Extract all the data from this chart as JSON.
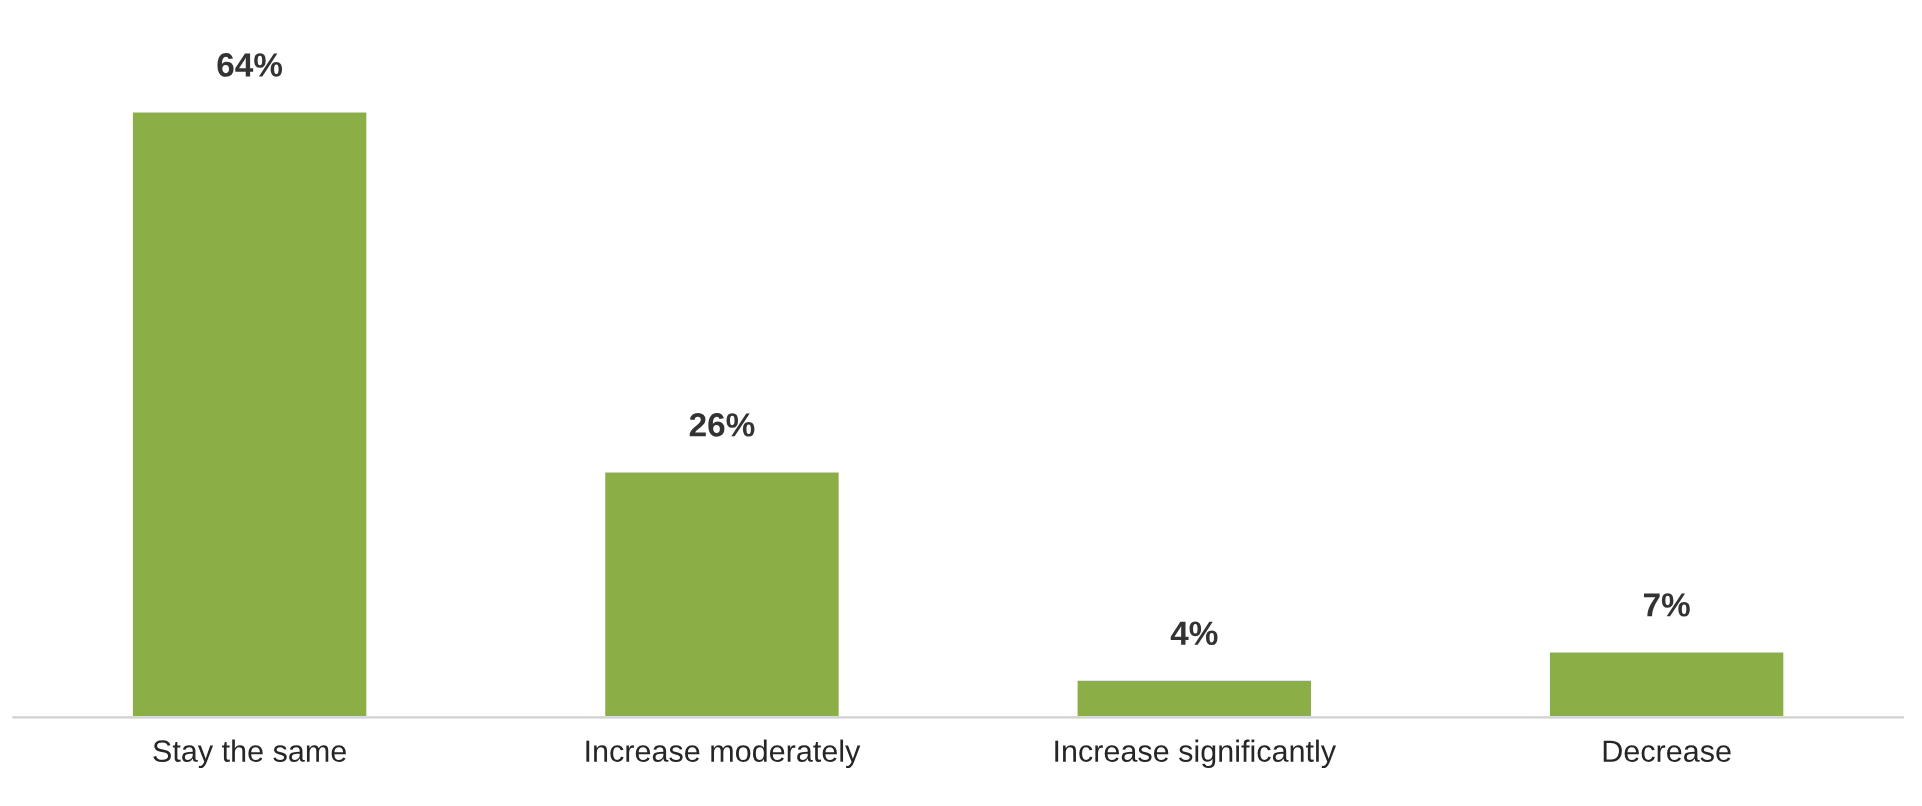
{
  "chart_data": {
    "type": "bar",
    "categories": [
      "Stay the same",
      "Increase moderately",
      "Increase significantly",
      "Decrease"
    ],
    "values": [
      64,
      26,
      4,
      7
    ],
    "value_labels": [
      "64%",
      "26%",
      "4%",
      "7%"
    ],
    "color": "#8bae47",
    "grid": false,
    "legend": false
  }
}
